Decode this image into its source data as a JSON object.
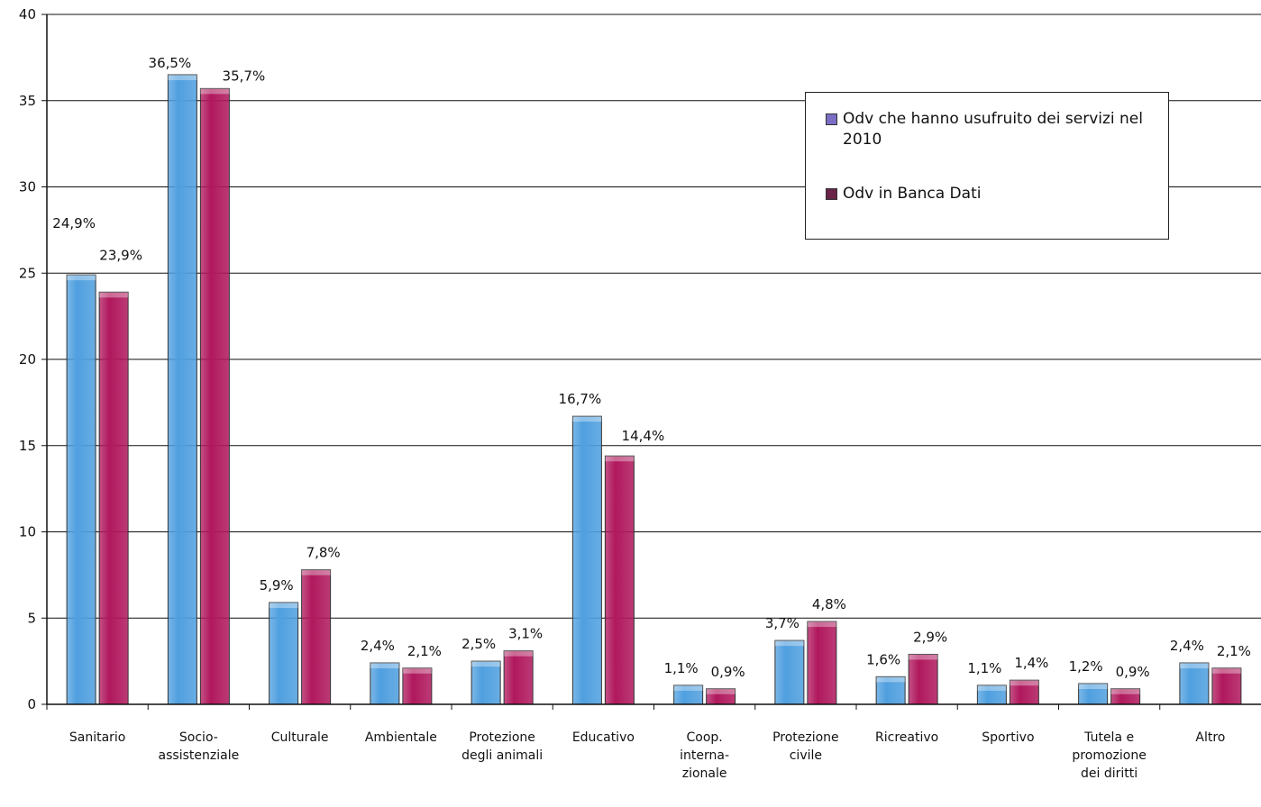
{
  "chart_data": {
    "type": "bar",
    "title": "",
    "xlabel": "",
    "ylabel": "",
    "ylim": [
      0,
      40
    ],
    "yticks": [
      0,
      5,
      10,
      15,
      20,
      25,
      30,
      35,
      40
    ],
    "grid": true,
    "legend_position": "top-right",
    "categories": [
      [
        "Sanitario"
      ],
      [
        "Socio-",
        "assistenziale"
      ],
      [
        "Culturale"
      ],
      [
        "Ambientale"
      ],
      [
        "Protezione",
        "degli animali"
      ],
      [
        "Educativo"
      ],
      [
        "Coop.",
        "interna-",
        "zionale"
      ],
      [
        "Protezione",
        "civile"
      ],
      [
        "Ricreativo"
      ],
      [
        "Sportivo"
      ],
      [
        "Tutela e",
        "promozione",
        "dei diritti"
      ],
      [
        "Altro"
      ]
    ],
    "series": [
      {
        "name": "Odv che hanno usufruito dei servizi nel 2010",
        "color": "#4f9fdf",
        "values": [
          24.9,
          36.5,
          5.9,
          2.4,
          2.5,
          16.7,
          1.1,
          3.7,
          1.6,
          1.1,
          1.2,
          2.4
        ],
        "labels": [
          "24,9%",
          "36,5%",
          "5,9%",
          "2,4%",
          "2,5%",
          "16,7%",
          "1,1%",
          "3,7%",
          "1,6%",
          "1,1%",
          "1,2%",
          "2,4%"
        ]
      },
      {
        "name": "Odv in Banca Dati",
        "color": "#b0185d",
        "values": [
          23.9,
          35.7,
          7.8,
          2.1,
          3.1,
          14.4,
          0.9,
          4.8,
          2.9,
          1.4,
          0.9,
          2.1
        ],
        "labels": [
          "23,9%",
          "35,7%",
          "7,8%",
          "2,1%",
          "3,1%",
          "14,4%",
          "0,9%",
          "4,8%",
          "2,9%",
          "1,4%",
          "0,9%",
          "2,1%"
        ]
      }
    ]
  },
  "legend": {
    "items": [
      {
        "text": "Odv che hanno usufruito dei servizi nel 2010",
        "swatch_color": "#7a6fc4"
      },
      {
        "text": "Odv in Banca Dati",
        "swatch_color": "#6a2448"
      }
    ]
  }
}
